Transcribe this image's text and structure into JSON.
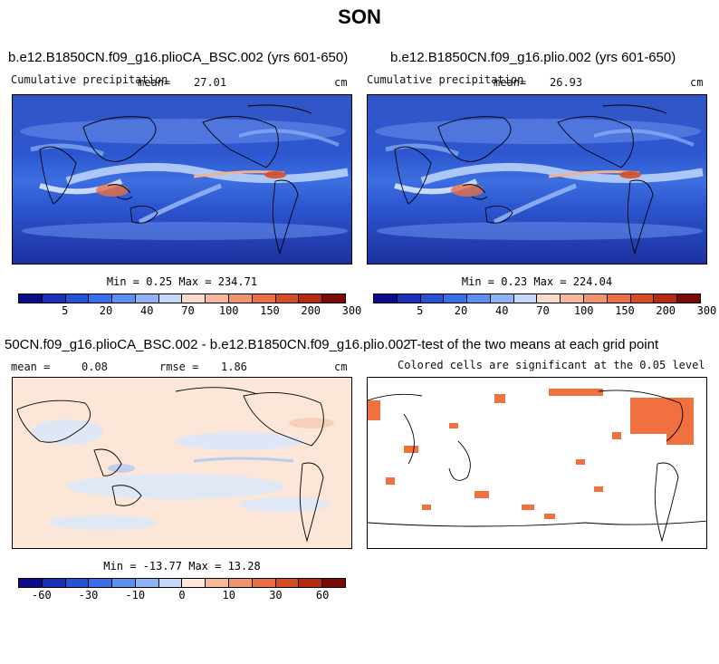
{
  "page_title": "SON",
  "panels": {
    "p1": {
      "title": "b.e12.B1850CN.f09_g16.plioCA_BSC.002 (yrs 601-650)",
      "left_label": "Cumulative precipitation",
      "mean_label": "mean=",
      "mean_value": "27.01",
      "units": "cm",
      "minmax": "Min =   0.25 Max = 234.71"
    },
    "p2": {
      "title": "b.e12.B1850CN.f09_g16.plio.002 (yrs 601-650)",
      "left_label": "Cumulative precipitation",
      "mean_label": "mean=",
      "mean_value": "26.93",
      "units": "cm",
      "minmax": "Min =   0.23 Max = 224.04"
    },
    "p3": {
      "title": "50CN.f09_g16.plioCA_BSC.002 - b.e12.B1850CN.f09_g16.plio.002",
      "mean_label": "mean =",
      "mean_value": "0.08",
      "rmse_label": "rmse =",
      "rmse_value": "1.86",
      "units": "cm",
      "minmax": "Min = -13.77 Max =  13.28"
    },
    "p4": {
      "title": "T-test of the two means at each grid point",
      "subtitle": "Colored cells are significant at the 0.05 level"
    }
  },
  "colorbar_precip": {
    "colors": [
      "#0a0a8a",
      "#1b2fb8",
      "#2652d6",
      "#3a6ee8",
      "#5b8ff0",
      "#8db2f5",
      "#c4d9fa",
      "#f7dccb",
      "#f5b89b",
      "#f0946e",
      "#e86e45",
      "#d74c22",
      "#b62a12",
      "#7a0a05"
    ],
    "ticks": [
      "5",
      "20",
      "40",
      "70",
      "100",
      "150",
      "200",
      "300"
    ]
  },
  "colorbar_diff": {
    "colors": [
      "#0a0a8a",
      "#1b2fb8",
      "#2652d6",
      "#3a6ee8",
      "#5b8ff0",
      "#8db2f5",
      "#c4d9fa",
      "#fbe6d8",
      "#f5b89b",
      "#f0946e",
      "#e86e45",
      "#d74c22",
      "#b62a12",
      "#7a0a05"
    ],
    "ticks": [
      "-60",
      "-30",
      "-10",
      "0",
      "10",
      "30",
      "60"
    ]
  },
  "ttest_color": "#f07040"
}
